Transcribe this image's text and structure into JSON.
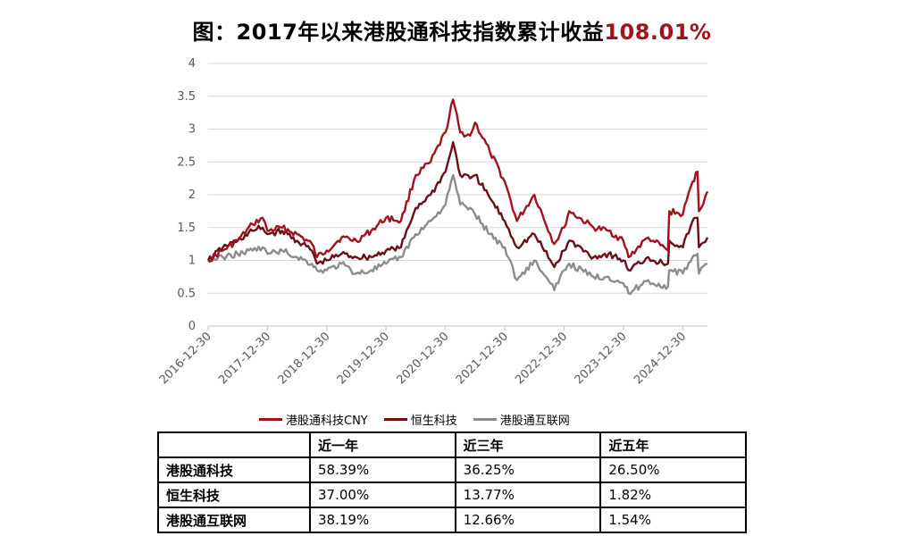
{
  "title": {
    "main": "图：2017年以来港股通科技指数累计收益",
    "accent": "108.01%"
  },
  "colors": {
    "tech_cny": "#a3111c",
    "hs_tech": "#6b0f17",
    "internet": "#8c8c8c",
    "accent": "#a3111c"
  },
  "chart_data": {
    "type": "line",
    "y_ticks": [
      "0",
      "0.5",
      "1",
      "1.5",
      "2",
      "2.5",
      "3",
      "3.5",
      "4"
    ],
    "x_ticks": [
      "2016-12-30",
      "2017-12-30",
      "2018-12-30",
      "2019-12-30",
      "2020-12-30",
      "2021-12-30",
      "2022-12-30",
      "2023-12-30",
      "2024-12-30"
    ],
    "ylim": [
      0,
      4
    ],
    "xlim": [
      "2016-12-30",
      "2025-05-31"
    ],
    "grid": true,
    "legend_position": "bottom",
    "series": [
      {
        "name": "港股通科技CNY",
        "color": "#a3111c",
        "x": [
          "2016-12-30",
          "2017-03-31",
          "2017-06-30",
          "2017-09-30",
          "2017-11-30",
          "2017-12-30",
          "2018-03-31",
          "2018-06-30",
          "2018-09-30",
          "2018-10-31",
          "2018-12-30",
          "2019-03-31",
          "2019-06-30",
          "2019-09-30",
          "2019-12-30",
          "2020-03-31",
          "2020-06-30",
          "2020-09-30",
          "2020-12-30",
          "2021-02-15",
          "2021-03-31",
          "2021-05-31",
          "2021-06-30",
          "2021-09-30",
          "2021-12-30",
          "2022-03-15",
          "2022-06-30",
          "2022-10-31",
          "2022-12-30",
          "2023-01-31",
          "2023-06-30",
          "2023-09-30",
          "2023-12-30",
          "2024-01-31",
          "2024-05-31",
          "2024-06-30",
          "2024-09-30",
          "2024-10-08",
          "2024-12-30",
          "2025-02-28",
          "2025-03-31",
          "2025-04-08",
          "2025-05-31"
        ],
        "y": [
          1.0,
          1.15,
          1.3,
          1.55,
          1.65,
          1.45,
          1.5,
          1.4,
          1.25,
          1.05,
          1.15,
          1.35,
          1.3,
          1.45,
          1.65,
          1.6,
          2.3,
          2.5,
          2.95,
          3.45,
          2.95,
          2.9,
          3.1,
          2.65,
          2.2,
          1.6,
          2.0,
          1.25,
          1.5,
          1.75,
          1.5,
          1.45,
          1.3,
          1.05,
          1.35,
          1.3,
          1.15,
          1.75,
          1.7,
          2.2,
          2.35,
          1.75,
          2.05
        ]
      },
      {
        "name": "恒生科技",
        "color": "#6b0f17",
        "x": [
          "2016-12-30",
          "2017-03-31",
          "2017-06-30",
          "2017-09-30",
          "2017-11-30",
          "2017-12-30",
          "2018-03-31",
          "2018-06-30",
          "2018-09-30",
          "2018-10-31",
          "2018-12-30",
          "2019-03-31",
          "2019-06-30",
          "2019-09-30",
          "2019-12-30",
          "2020-03-31",
          "2020-06-30",
          "2020-09-30",
          "2020-12-30",
          "2021-02-15",
          "2021-03-31",
          "2021-05-31",
          "2021-06-30",
          "2021-09-30",
          "2021-12-30",
          "2022-03-15",
          "2022-06-30",
          "2022-10-31",
          "2022-12-30",
          "2023-01-31",
          "2023-06-30",
          "2023-09-30",
          "2023-12-30",
          "2024-01-31",
          "2024-05-31",
          "2024-06-30",
          "2024-09-30",
          "2024-10-08",
          "2024-12-30",
          "2025-02-28",
          "2025-03-31",
          "2025-04-08",
          "2025-05-31"
        ],
        "y": [
          1.0,
          1.2,
          1.3,
          1.45,
          1.5,
          1.4,
          1.45,
          1.3,
          1.15,
          0.95,
          1.0,
          1.1,
          1.05,
          1.05,
          1.15,
          1.2,
          1.8,
          2.0,
          2.35,
          2.8,
          2.3,
          2.25,
          2.3,
          1.95,
          1.6,
          1.2,
          1.4,
          0.9,
          1.15,
          1.3,
          1.05,
          1.1,
          1.0,
          0.85,
          1.05,
          1.0,
          0.95,
          1.3,
          1.2,
          1.6,
          1.65,
          1.2,
          1.35
        ]
      },
      {
        "name": "港股通互联网",
        "color": "#8c8c8c",
        "x": [
          "2016-12-30",
          "2017-03-31",
          "2017-06-30",
          "2017-09-30",
          "2017-11-30",
          "2017-12-30",
          "2018-03-31",
          "2018-06-30",
          "2018-09-30",
          "2018-10-31",
          "2018-12-30",
          "2019-03-31",
          "2019-06-30",
          "2019-09-30",
          "2019-12-30",
          "2020-03-31",
          "2020-06-30",
          "2020-09-30",
          "2020-12-30",
          "2021-02-15",
          "2021-03-31",
          "2021-05-31",
          "2021-06-30",
          "2021-09-30",
          "2021-12-30",
          "2022-03-15",
          "2022-06-30",
          "2022-10-31",
          "2022-12-30",
          "2023-01-31",
          "2023-06-30",
          "2023-09-30",
          "2023-12-30",
          "2024-01-31",
          "2024-05-31",
          "2024-06-30",
          "2024-09-30",
          "2024-10-08",
          "2024-12-30",
          "2025-02-28",
          "2025-03-31",
          "2025-04-08",
          "2025-05-31"
        ],
        "y": [
          1.0,
          1.05,
          1.1,
          1.15,
          1.2,
          1.1,
          1.15,
          1.05,
          0.95,
          0.85,
          0.85,
          0.95,
          0.8,
          0.85,
          0.95,
          1.05,
          1.4,
          1.6,
          1.85,
          2.3,
          1.85,
          1.8,
          1.7,
          1.4,
          1.2,
          0.7,
          1.0,
          0.55,
          0.85,
          0.95,
          0.75,
          0.75,
          0.65,
          0.5,
          0.7,
          0.65,
          0.6,
          0.85,
          0.8,
          1.05,
          1.1,
          0.8,
          0.95
        ]
      }
    ]
  },
  "table": {
    "columns": [
      "",
      "近一年",
      "近三年",
      "近五年"
    ],
    "rows": [
      {
        "name": "港股通科技",
        "values": [
          "58.39%",
          "36.25%",
          "26.50%"
        ]
      },
      {
        "name": "恒生科技",
        "values": [
          "37.00%",
          "13.77%",
          "1.82%"
        ]
      },
      {
        "name": "港股通互联网",
        "values": [
          "38.19%",
          "12.66%",
          "1.54%"
        ]
      }
    ]
  }
}
